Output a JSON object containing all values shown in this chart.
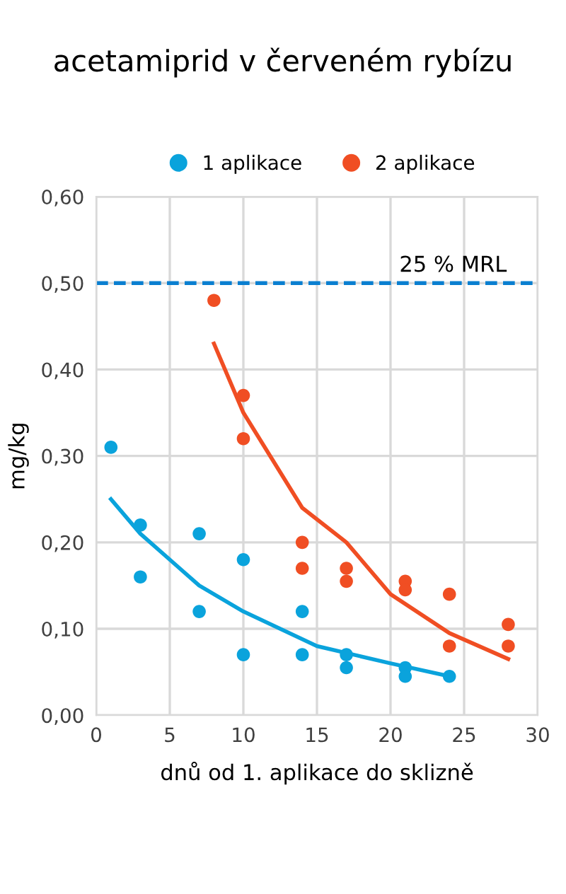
{
  "chart_data": {
    "type": "scatter",
    "title": "acetamiprid v červeném rybízu",
    "xlabel": "dnů od 1. aplikace do sklizně",
    "ylabel": "mg/kg",
    "xlim": [
      0,
      30
    ],
    "xticks": [
      0,
      5,
      10,
      15,
      20,
      25,
      30
    ],
    "ylim": [
      0,
      0.6
    ],
    "yticks": [
      {
        "value": 0,
        "label": "0,00"
      },
      {
        "value": 0.1,
        "label": "0,10"
      },
      {
        "value": 0.2,
        "label": "0,20"
      },
      {
        "value": 0.3,
        "label": "0,30"
      },
      {
        "value": 0.4,
        "label": "0,40"
      },
      {
        "value": 0.5,
        "label": "0,50"
      },
      {
        "value": 0.6,
        "label": "0,60"
      }
    ],
    "grid": true,
    "legend": "top",
    "series": [
      {
        "name": "1 aplikace",
        "marker": "circle",
        "color": "#0aa3dc",
        "x": [
          1,
          3,
          3,
          7,
          7,
          10,
          10,
          14,
          14,
          17,
          17,
          21,
          21,
          24
        ],
        "values": [
          0.31,
          0.22,
          0.16,
          0.21,
          0.12,
          0.18,
          0.07,
          0.12,
          0.07,
          0.07,
          0.055,
          0.055,
          0.045,
          0.045
        ]
      },
      {
        "name": "2 aplikace",
        "marker": "circle",
        "color": "#f04e23",
        "x": [
          8,
          10,
          10,
          14,
          14,
          17,
          17,
          21,
          21,
          24,
          24,
          28,
          28
        ],
        "values": [
          0.48,
          0.37,
          0.32,
          0.2,
          0.17,
          0.17,
          0.155,
          0.155,
          0.145,
          0.14,
          0.08,
          0.105,
          0.08
        ]
      },
      {
        "type": "line",
        "color": "#0aa3dc",
        "x": [
          1,
          3,
          5,
          7,
          10,
          15,
          20,
          24
        ],
        "values": [
          0.25,
          0.21,
          0.18,
          0.15,
          0.12,
          0.08,
          0.06,
          0.045
        ]
      },
      {
        "type": "line",
        "color": "#f04e23",
        "x": [
          8,
          10,
          14,
          17,
          20,
          24,
          28
        ],
        "values": [
          0.43,
          0.35,
          0.24,
          0.2,
          0.14,
          0.095,
          0.065
        ]
      }
    ],
    "ref_lines": [
      {
        "axis": "y",
        "value": 0.5,
        "label": "25 % MRL",
        "color": "#0a7fd0",
        "line_style": "dashed"
      }
    ]
  }
}
